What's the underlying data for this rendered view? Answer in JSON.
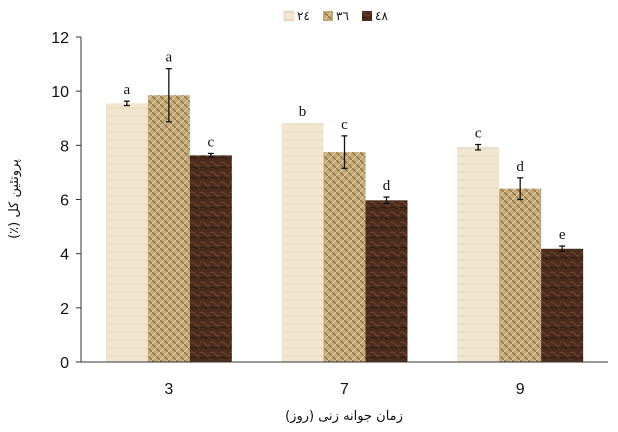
{
  "chart_data": {
    "type": "bar",
    "categories": [
      "3",
      "7",
      "9"
    ],
    "series": [
      {
        "name": "۲٤",
        "values": [
          9.55,
          8.82,
          7.93
        ],
        "errors": [
          0.08,
          0,
          0.1
        ],
        "letters": [
          "a",
          "b",
          "c"
        ],
        "color": "#efe3cc"
      },
      {
        "name": "۳٦",
        "values": [
          9.85,
          7.75,
          6.4
        ],
        "errors": [
          0.98,
          0.6,
          0.4
        ],
        "letters": [
          "a",
          "c",
          "d"
        ],
        "color": "#b89d6a"
      },
      {
        "name": "٤۸",
        "values": [
          7.63,
          5.97,
          4.18
        ],
        "errors": [
          0.07,
          0.12,
          0.1
        ],
        "letters": [
          "c",
          "d",
          "e"
        ],
        "color": "#4a2c1c"
      }
    ],
    "xlabel": "زمان جوانه زنی (روز)",
    "ylabel": "پروتئین کل (٪)",
    "ylim": [
      0,
      12
    ],
    "yticks": [
      0,
      2,
      4,
      6,
      8,
      10,
      12
    ],
    "legend_position": "top-center",
    "grid": false
  }
}
